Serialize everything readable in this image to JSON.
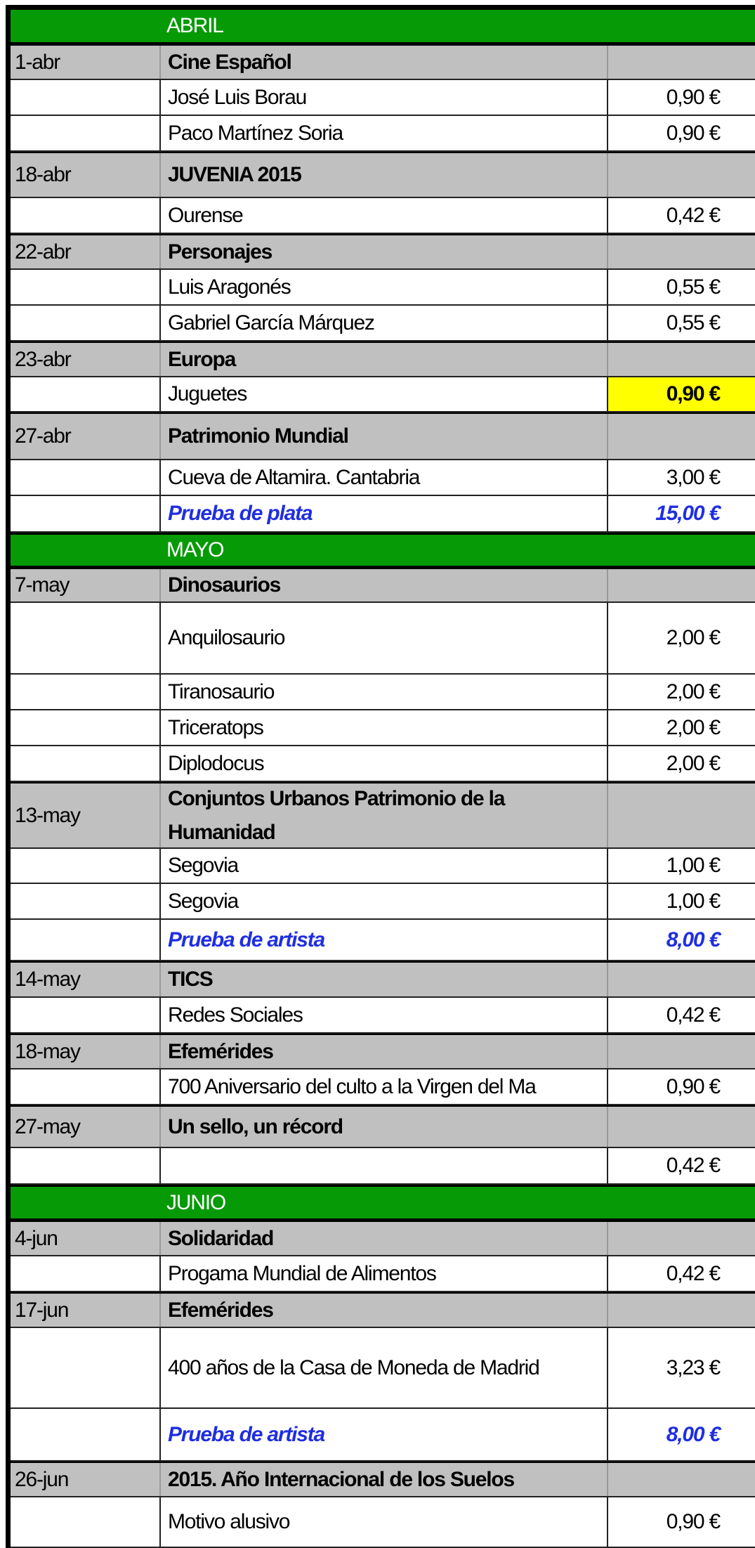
{
  "colors": {
    "month_header": "#079a07",
    "group_row": "#c0c0c0",
    "highlight": "#ffff00",
    "proof_text": "#1f2ee0"
  },
  "rows": [
    {
      "type": "month",
      "name": "ABRIL"
    },
    {
      "type": "group",
      "date": "1-abr",
      "name": "Cine Español"
    },
    {
      "type": "item",
      "name": "José Luis Borau",
      "price": "0,90 €"
    },
    {
      "type": "item",
      "name": "Paco Martínez Soria",
      "price": "0,90 €"
    },
    {
      "type": "group",
      "date": "18-abr",
      "name": "JUVENIA 2015"
    },
    {
      "type": "item",
      "name": "Ourense",
      "price": "0,42 €"
    },
    {
      "type": "group",
      "date": "22-abr",
      "name": "Personajes"
    },
    {
      "type": "item",
      "name": "Luis Aragonés",
      "price": "0,55 €"
    },
    {
      "type": "item",
      "name": "Gabriel García Márquez",
      "price": "0,55 €"
    },
    {
      "type": "group",
      "date": "23-abr",
      "name": "Europa"
    },
    {
      "type": "item",
      "name": "Juguetes",
      "price": "0,90 €",
      "highlight": true
    },
    {
      "type": "group",
      "date": "27-abr",
      "name": "Patrimonio Mundial"
    },
    {
      "type": "item",
      "name": "Cueva de Altamira. Cantabria",
      "price": "3,00 €"
    },
    {
      "type": "proof",
      "name": "Prueba de plata",
      "price": "15,00 €"
    },
    {
      "type": "month",
      "name": "MAYO"
    },
    {
      "type": "group",
      "date": "7-may",
      "name": "Dinosaurios"
    },
    {
      "type": "item",
      "name": "Anquilosaurio",
      "price": "2,00 €"
    },
    {
      "type": "item",
      "name": "Tiranosaurio",
      "price": "2,00 €"
    },
    {
      "type": "item",
      "name": "Triceratops",
      "price": "2,00 €"
    },
    {
      "type": "item",
      "name": "Diplodocus",
      "price": "2,00 €"
    },
    {
      "type": "group",
      "date": "13-may",
      "name": "Conjuntos Urbanos Patrimonio de la Humanidad",
      "wrap": true
    },
    {
      "type": "item",
      "name": "Segovia",
      "price": "1,00 €"
    },
    {
      "type": "item",
      "name": "Segovia",
      "price": "1,00 €"
    },
    {
      "type": "proof",
      "name": "Prueba de artista",
      "price": "8,00 €"
    },
    {
      "type": "group",
      "date": "14-may",
      "name": "TICS"
    },
    {
      "type": "item",
      "name": "Redes Sociales",
      "price": "0,42 €"
    },
    {
      "type": "group",
      "date": "18-may",
      "name": "Efemérides"
    },
    {
      "type": "item",
      "name": "700 Aniversario del culto a la Virgen del Ma",
      "price": "0,90 €"
    },
    {
      "type": "group",
      "date": "27-may",
      "name": "Un sello, un récord"
    },
    {
      "type": "item",
      "name": "",
      "price": "0,42 €"
    },
    {
      "type": "month",
      "name": "JUNIO"
    },
    {
      "type": "group",
      "date": "4-jun",
      "name": "Solidaridad"
    },
    {
      "type": "item",
      "name": "Progama Mundial de Alimentos",
      "price": "0,42 €"
    },
    {
      "type": "group",
      "date": "17-jun",
      "name": "Efemérides"
    },
    {
      "type": "item",
      "name": "400 años de la Casa de  Moneda de Madrid",
      "price": "3,23 €",
      "wrap": true
    },
    {
      "type": "proof",
      "name": "Prueba de artista",
      "price": "8,00 €"
    },
    {
      "type": "group",
      "date": "26-jun",
      "name": "2015. Año Internacional de los Suelos"
    },
    {
      "type": "item",
      "name": "Motivo alusivo",
      "price": "0,90 €"
    }
  ]
}
